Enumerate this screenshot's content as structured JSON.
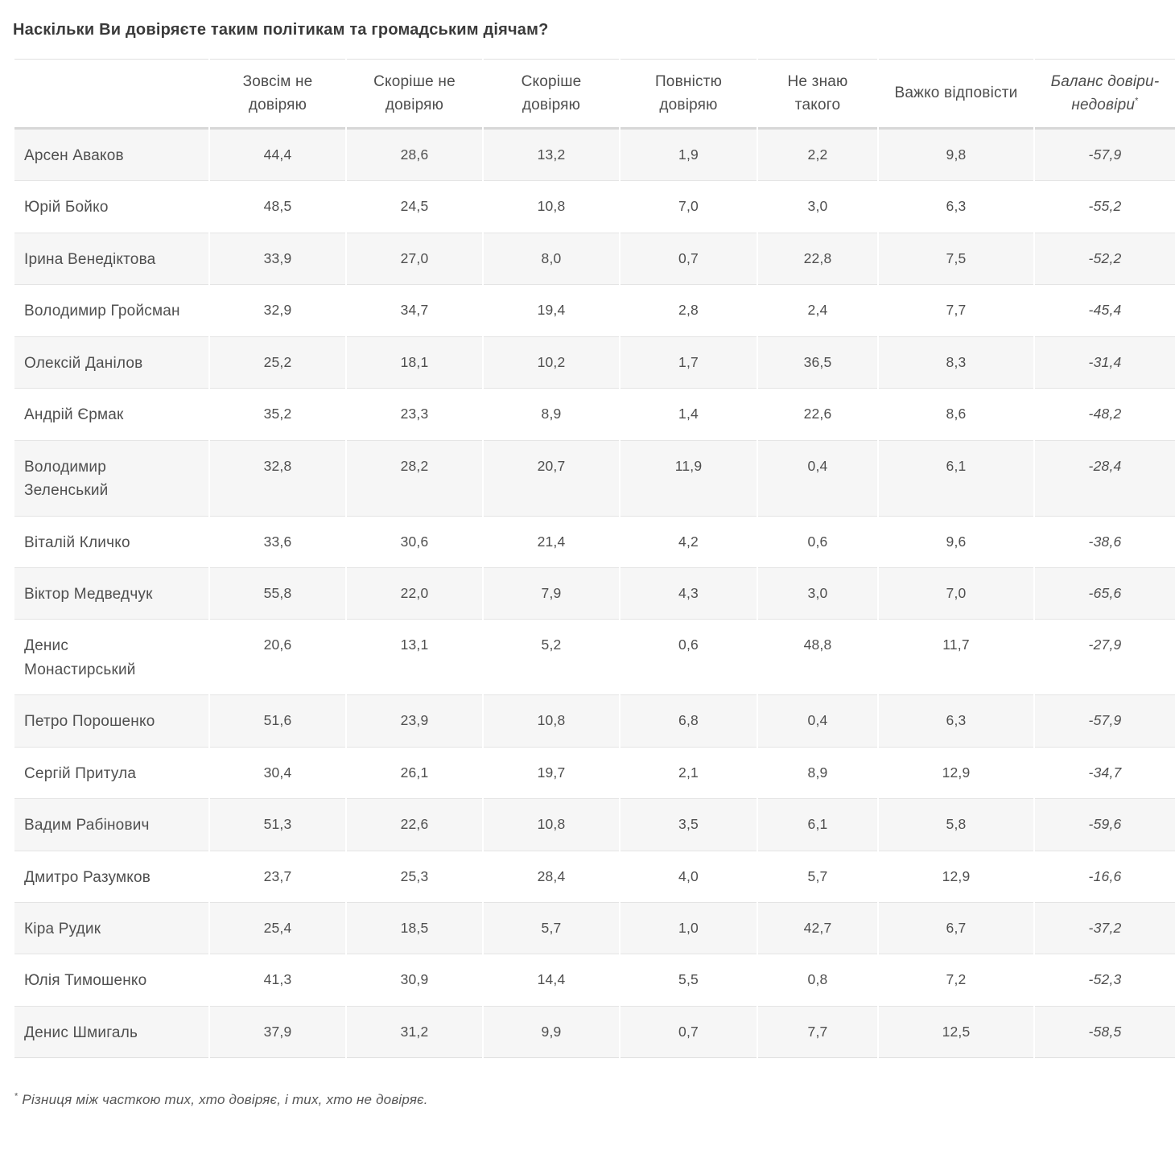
{
  "page": {
    "title": "Наскільки Ви довіряєте таким політикам та громадським діячам?"
  },
  "table": {
    "name_column_header": "",
    "columns": [
      "Зовсім не довіряю",
      "Скоріше не довіряю",
      "Скоріше довіряю",
      "Повністю довіряю",
      "Не знаю такого",
      "Важко відповісти"
    ],
    "balance_column": {
      "label": "Баланс довіри-недовіри",
      "footnote_marker": "*"
    },
    "two_line_names": [
      "Володимир Зеленський",
      "Денис Монастирський"
    ]
  },
  "footnote": {
    "marker": "*",
    "text": " Різниця між часткою тих, хто довіряє, і тих, хто не довіряє."
  },
  "chart_data": {
    "type": "table",
    "title": "Наскільки Ви довіряєте таким політикам та громадським діячам?",
    "columns": [
      "Зовсім не довіряю",
      "Скоріше не довіряю",
      "Скоріше довіряю",
      "Повністю довіряю",
      "Не знаю такого",
      "Важко відповісти",
      "Баланс довіри-недовіри*"
    ],
    "value_format": "one decimal place, comma as decimal separator",
    "rows": [
      {
        "name": "Арсен Аваков",
        "values": [
          44.4,
          28.6,
          13.2,
          1.9,
          2.2,
          9.8,
          -57.9
        ]
      },
      {
        "name": "Юрій Бойко",
        "values": [
          48.5,
          24.5,
          10.8,
          7.0,
          3.0,
          6.3,
          -55.2
        ]
      },
      {
        "name": "Ірина Венедіктова",
        "values": [
          33.9,
          27.0,
          8.0,
          0.7,
          22.8,
          7.5,
          -52.2
        ]
      },
      {
        "name": "Володимир Гройсман",
        "values": [
          32.9,
          34.7,
          19.4,
          2.8,
          2.4,
          7.7,
          -45.4
        ]
      },
      {
        "name": "Олексій Данілов",
        "values": [
          25.2,
          18.1,
          10.2,
          1.7,
          36.5,
          8.3,
          -31.4
        ]
      },
      {
        "name": "Андрій Єрмак",
        "values": [
          35.2,
          23.3,
          8.9,
          1.4,
          22.6,
          8.6,
          -48.2
        ]
      },
      {
        "name": "Володимир Зеленський",
        "values": [
          32.8,
          28.2,
          20.7,
          11.9,
          0.4,
          6.1,
          -28.4
        ]
      },
      {
        "name": "Віталій Кличко",
        "values": [
          33.6,
          30.6,
          21.4,
          4.2,
          0.6,
          9.6,
          -38.6
        ]
      },
      {
        "name": "Віктор Медведчук",
        "values": [
          55.8,
          22.0,
          7.9,
          4.3,
          3.0,
          7.0,
          -65.6
        ]
      },
      {
        "name": "Денис Монастирський",
        "values": [
          20.6,
          13.1,
          5.2,
          0.6,
          48.8,
          11.7,
          -27.9
        ]
      },
      {
        "name": "Петро Порошенко",
        "values": [
          51.6,
          23.9,
          10.8,
          6.8,
          0.4,
          6.3,
          -57.9
        ]
      },
      {
        "name": "Сергій Притула",
        "values": [
          30.4,
          26.1,
          19.7,
          2.1,
          8.9,
          12.9,
          -34.7
        ]
      },
      {
        "name": "Вадим Рабінович",
        "values": [
          51.3,
          22.6,
          10.8,
          3.5,
          6.1,
          5.8,
          -59.6
        ]
      },
      {
        "name": "Дмитро Разумков",
        "values": [
          23.7,
          25.3,
          28.4,
          4.0,
          5.7,
          12.9,
          -16.6
        ]
      },
      {
        "name": "Кіра Рудик",
        "values": [
          25.4,
          18.5,
          5.7,
          1.0,
          42.7,
          6.7,
          -37.2
        ]
      },
      {
        "name": "Юлія Тимошенко",
        "values": [
          41.3,
          30.9,
          14.4,
          5.5,
          0.8,
          7.2,
          -52.3
        ]
      },
      {
        "name": "Денис Шмигаль",
        "values": [
          37.9,
          31.2,
          9.9,
          0.7,
          7.7,
          12.5,
          -58.5
        ]
      }
    ],
    "footnote": "* Різниця між часткою тих, хто довіряє, і тих, хто не довіряє.",
    "layout": {
      "zebra_striping": "odd rows shaded",
      "zebra_color": "#f6f6f6",
      "border_color": "#e4e4e4",
      "balance_column_style": "italic"
    }
  }
}
